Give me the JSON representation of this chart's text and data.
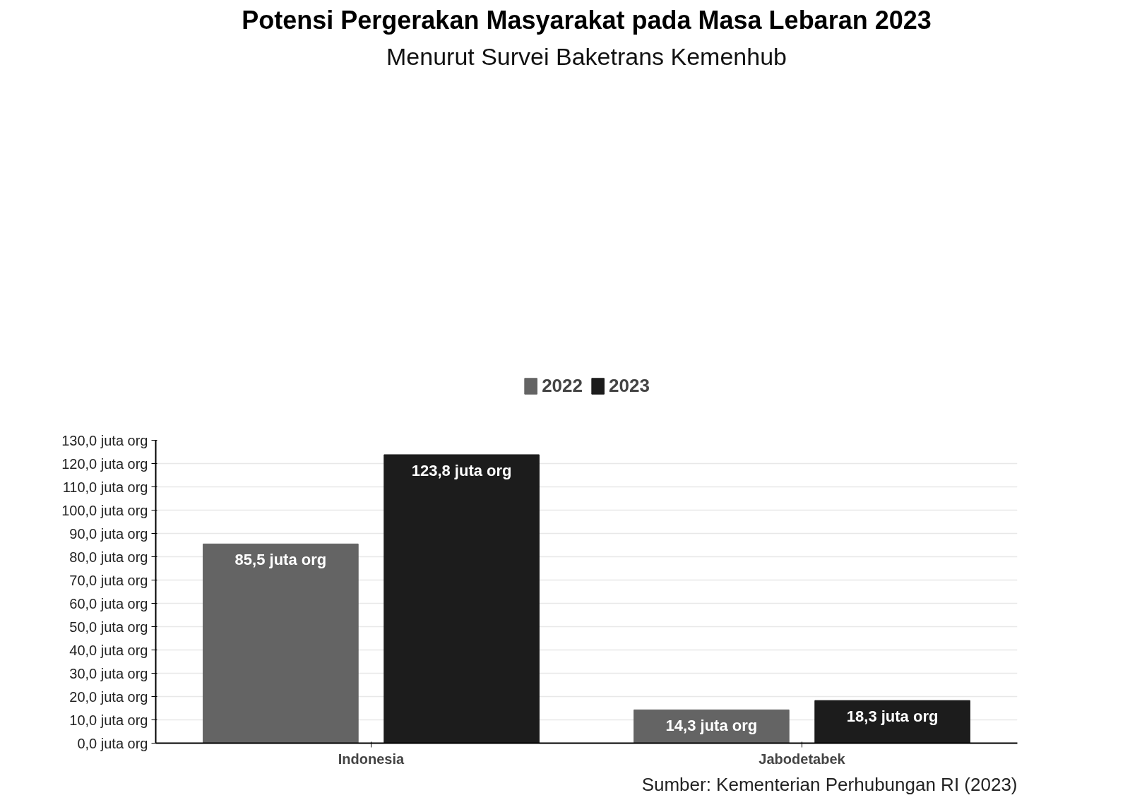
{
  "chart_data": {
    "type": "bar",
    "title": "Potensi Pergerakan Masyarakat pada Masa Lebaran 2023",
    "subtitle": "Menurut Survei Baketrans Kemenhub",
    "categories": [
      "Indonesia",
      "Jabodetabek"
    ],
    "series": [
      {
        "name": "2022",
        "color": "#646464",
        "values": [
          85.5,
          14.3
        ],
        "value_labels": [
          "85,5 juta org",
          "14,3 juta org"
        ]
      },
      {
        "name": "2023",
        "color": "#1c1c1c",
        "values": [
          123.8,
          18.3
        ],
        "value_labels": [
          "123,8 juta org",
          "18,3 juta org"
        ]
      }
    ],
    "ylim": [
      0,
      130
    ],
    "yticks": [
      {
        "value": 0,
        "label": "0,0 juta org"
      },
      {
        "value": 10,
        "label": "10,0 juta org"
      },
      {
        "value": 20,
        "label": "20,0 juta org"
      },
      {
        "value": 30,
        "label": "30,0 juta org"
      },
      {
        "value": 40,
        "label": "40,0 juta org"
      },
      {
        "value": 50,
        "label": "50,0 juta org"
      },
      {
        "value": 60,
        "label": "60,0 juta org"
      },
      {
        "value": 70,
        "label": "70,0 juta org"
      },
      {
        "value": 80,
        "label": "80,0 juta org"
      },
      {
        "value": 90,
        "label": "90,0 juta org"
      },
      {
        "value": 100,
        "label": "100,0 juta org"
      },
      {
        "value": 110,
        "label": "110,0 juta org"
      },
      {
        "value": 120,
        "label": "120,0 juta org"
      },
      {
        "value": 130,
        "label": "130,0 juta org"
      }
    ],
    "grid": "y",
    "legend": "top",
    "annotations": [
      "Sumber: Kementerian Perhubungan RI (2023)"
    ]
  }
}
